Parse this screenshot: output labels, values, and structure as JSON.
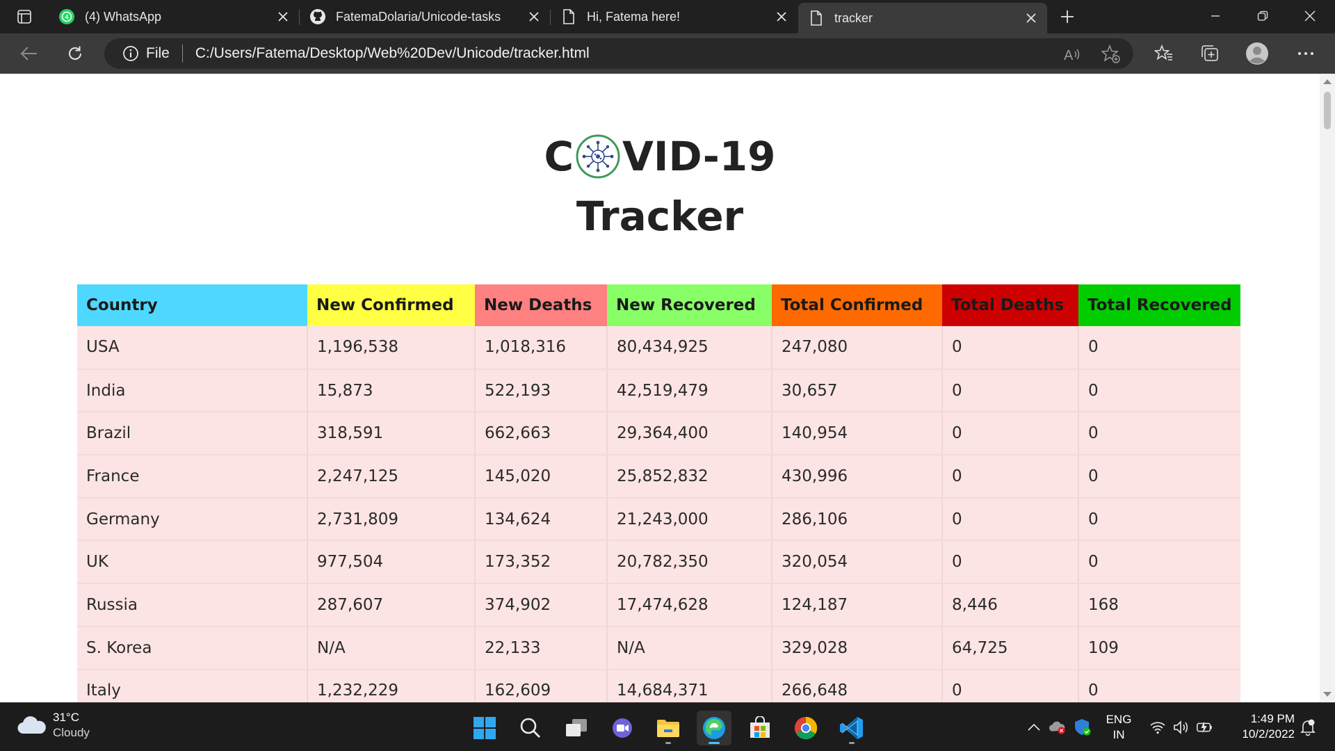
{
  "browser": {
    "tabs": [
      {
        "title": "(4) WhatsApp",
        "icon": "whatsapp-icon",
        "badge": "4"
      },
      {
        "title": "FatemaDolaria/Unicode-tasks",
        "icon": "github-icon"
      },
      {
        "title": "Hi, Fatema here!",
        "icon": "page-icon"
      },
      {
        "title": "tracker",
        "icon": "page-icon",
        "active": true
      }
    ],
    "address": {
      "scheme_label": "File",
      "url": "C:/Users/Fatema/Desktop/Web%20Dev/Unicode/tracker.html"
    }
  },
  "page": {
    "title_prefix": "C",
    "title_suffix": "VID-19",
    "title_line2": "Tracker",
    "table": {
      "headers": [
        {
          "label": "Country",
          "color": "#4fd8ff"
        },
        {
          "label": "New Confirmed",
          "color": "#ffff44"
        },
        {
          "label": "New Deaths",
          "color": "#ff8080"
        },
        {
          "label": "New Recovered",
          "color": "#88ff66"
        },
        {
          "label": "Total Confirmed",
          "color": "#ff6a00"
        },
        {
          "label": "Total Deaths",
          "color": "#cc0000"
        },
        {
          "label": "Total Recovered",
          "color": "#00cc00"
        }
      ],
      "rows": [
        [
          "USA",
          "1,196,538",
          "1,018,316",
          "80,434,925",
          "247,080",
          "0",
          "0"
        ],
        [
          "India",
          "15,873",
          "522,193",
          "42,519,479",
          "30,657",
          "0",
          "0"
        ],
        [
          "Brazil",
          "318,591",
          "662,663",
          "29,364,400",
          "140,954",
          "0",
          "0"
        ],
        [
          "France",
          "2,247,125",
          "145,020",
          "25,852,832",
          "430,996",
          "0",
          "0"
        ],
        [
          "Germany",
          "2,731,809",
          "134,624",
          "21,243,000",
          "286,106",
          "0",
          "0"
        ],
        [
          "UK",
          "977,504",
          "173,352",
          "20,782,350",
          "320,054",
          "0",
          "0"
        ],
        [
          "Russia",
          "287,607",
          "374,902",
          "17,474,628",
          "124,187",
          "8,446",
          "168"
        ],
        [
          "S. Korea",
          "N/A",
          "22,133",
          "N/A",
          "329,028",
          "64,725",
          "109"
        ],
        [
          "Italy",
          "1,232,229",
          "162,609",
          "14,684,371",
          "266,648",
          "0",
          "0"
        ]
      ],
      "row_color": "#fde4e4"
    }
  },
  "taskbar": {
    "weather": {
      "temp": "31°C",
      "condition": "Cloudy"
    },
    "apps": [
      "start-icon",
      "search-icon",
      "task-view-icon",
      "chat-icon",
      "file-explorer-icon",
      "edge-icon",
      "store-icon",
      "chrome-icon",
      "vscode-icon"
    ],
    "language": {
      "line1": "ENG",
      "line2": "IN"
    },
    "clock": {
      "time": "1:49 PM",
      "date": "10/2/2022"
    }
  }
}
